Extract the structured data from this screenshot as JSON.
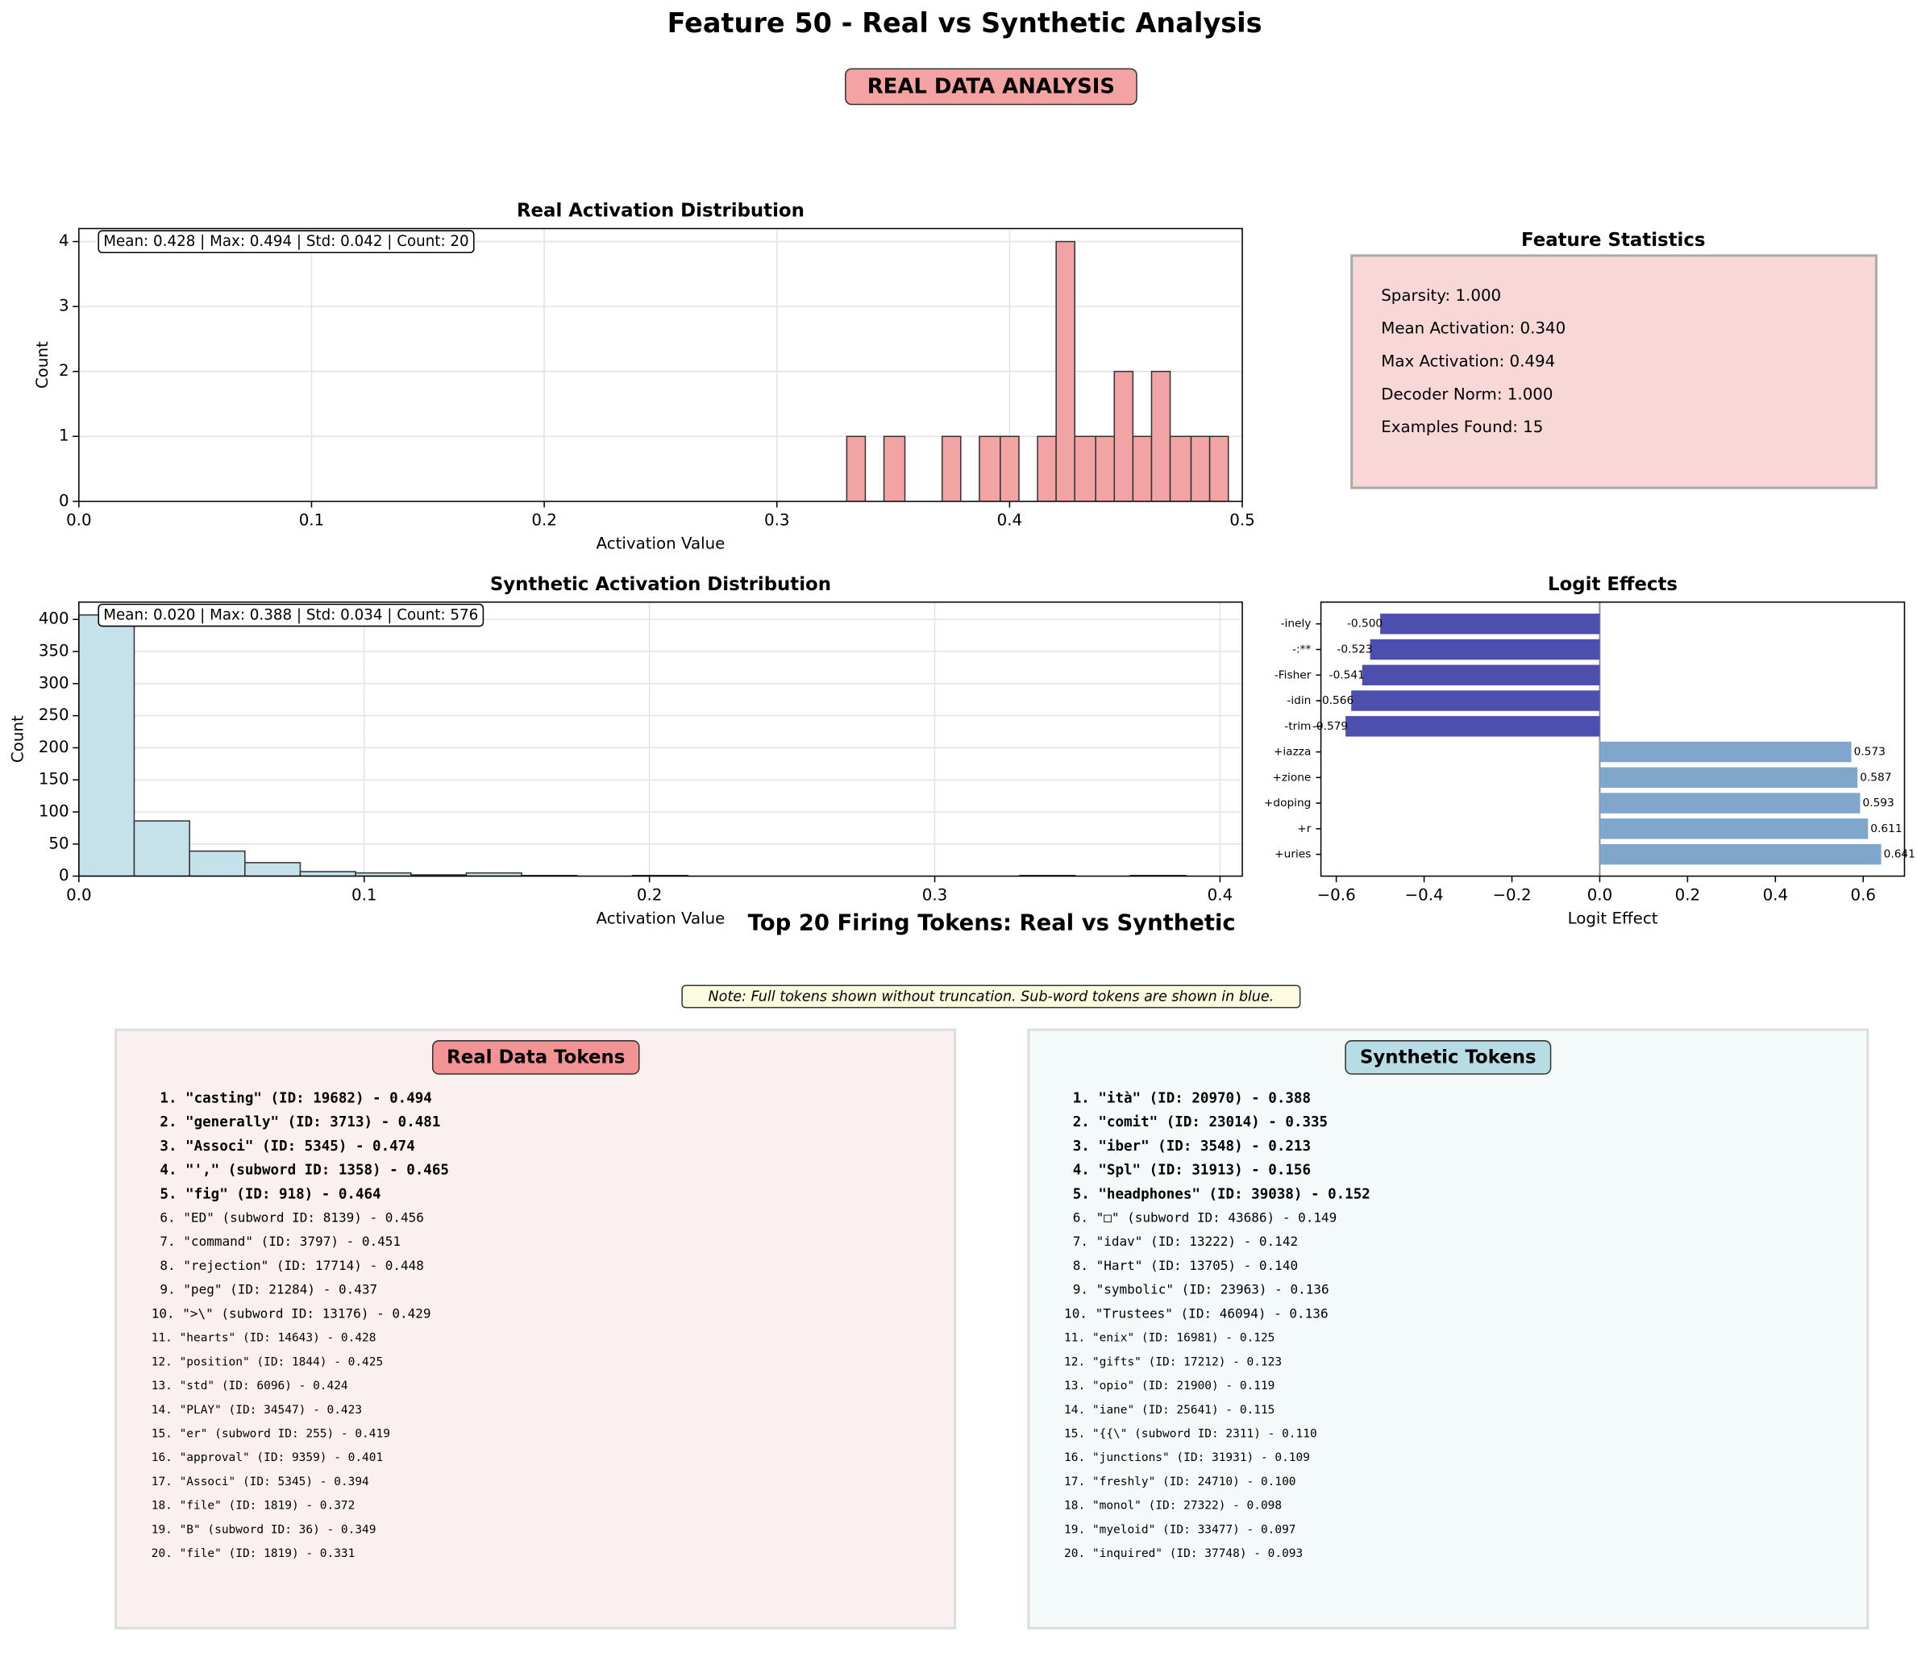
{
  "header": {
    "title": "Feature 50 - Real vs Synthetic Analysis",
    "banner": "REAL DATA ANALYSIS"
  },
  "chart_data": [
    {
      "type": "histogram",
      "title": "Real Activation Distribution",
      "x_label": "Activation Value",
      "y_label": "Count",
      "annotation": "Mean: 0.428 | Max: 0.494 | Std: 0.042 | Count: 20",
      "bins": [
        0.33,
        0.338,
        0.346,
        0.355,
        0.363,
        0.371,
        0.379,
        0.387,
        0.396,
        0.404,
        0.412,
        0.42,
        0.428,
        0.437,
        0.445,
        0.453,
        0.461,
        0.469,
        0.478,
        0.486,
        0.494
      ],
      "values": [
        1,
        0,
        1,
        0,
        0,
        1,
        0,
        1,
        1,
        0,
        1,
        4,
        1,
        1,
        2,
        1,
        2,
        1,
        1,
        1
      ],
      "color": "#f2a3a3",
      "xlim": [
        0,
        0.5
      ],
      "ylim": [
        0,
        4.2
      ],
      "xticks": [
        {
          "value": 0,
          "label": "0.0"
        },
        0.1,
        0.2,
        0.3,
        0.4,
        0.5
      ],
      "yticks": [
        0,
        1,
        2,
        3,
        4
      ],
      "grid": true
    },
    {
      "type": "histogram",
      "title": "Synthetic Activation Distribution",
      "x_label": "Activation Value",
      "y_label": "Count",
      "annotation": "Mean: 0.020 | Max: 0.388 | Std: 0.034 | Count: 576",
      "bins": [
        0,
        0.0194,
        0.0388,
        0.0582,
        0.0776,
        0.097,
        0.1164,
        0.1358,
        0.1552,
        0.1746,
        0.194,
        0.2134,
        0.2328,
        0.2522,
        0.2716,
        0.291,
        0.3104,
        0.3298,
        0.3492,
        0.3686,
        0.388
      ],
      "values": [
        407,
        86,
        39,
        21,
        7,
        5,
        2,
        5,
        1,
        0,
        1,
        0,
        0,
        0,
        0,
        0,
        0,
        1,
        0,
        1
      ],
      "color": "#c5e2ea",
      "xlim": [
        0,
        0.4078
      ],
      "ylim": [
        0,
        427
      ],
      "xticks": [
        {
          "value": 0,
          "label": "0.0"
        },
        0.1,
        0.2,
        0.3,
        0.4
      ],
      "yticks": [
        0,
        50,
        100,
        150,
        200,
        250,
        300,
        350,
        400
      ],
      "grid": true
    },
    {
      "type": "barh",
      "title": "Logit Effects",
      "x_label": "Logit Effect",
      "categories": [
        "-inely",
        "-:**",
        "-Fisher",
        "-idin",
        "-trim",
        "+iazza",
        "+zione",
        "+doping",
        "+r",
        "+uries"
      ],
      "values": [
        -0.5,
        -0.523,
        -0.541,
        -0.566,
        -0.579,
        0.573,
        0.587,
        0.593,
        0.611,
        0.641
      ],
      "value_labels": [
        "-0.500",
        "-0.523",
        "-0.541",
        "-0.566",
        "-0.579",
        "0.573",
        "0.587",
        "0.593",
        "0.611",
        "0.641"
      ],
      "negative_color": "#4d4fae",
      "positive_color": "#7fa7cc",
      "xlim": [
        -0.635,
        0.694
      ],
      "xticks": [
        {
          "value": -0.6,
          "label": "−0.6"
        },
        {
          "value": -0.4,
          "label": "−0.4"
        },
        {
          "value": -0.2,
          "label": "−0.2"
        },
        {
          "value": 0,
          "label": "0.0"
        },
        0.2,
        0.4,
        0.6
      ],
      "grid": false
    }
  ],
  "statistics": {
    "title": "Feature Statistics",
    "items": [
      "Sparsity: 1.000",
      "Mean Activation: 0.340",
      "Max Activation: 0.494",
      "Decoder Norm: 1.000",
      "Examples Found: 15"
    ]
  },
  "tokens": {
    "title": "Top 20 Firing Tokens: Real vs Synthetic",
    "note": "Note: Full tokens shown without truncation. Sub-word tokens are shown in blue.",
    "real": {
      "title": "Real Data Tokens",
      "items": [
        "1. \"casting\" (ID: 19682) - 0.494",
        "2. \"generally\" (ID: 3713) - 0.481",
        "3. \"Associ\" (ID: 5345) - 0.474",
        "4. \"',\" (subword ID: 1358) - 0.465",
        "5. \"fig\" (ID: 918) - 0.464",
        "6. \"ED\" (subword ID: 8139) - 0.456",
        "7. \"command\" (ID: 3797) - 0.451",
        "8. \"rejection\" (ID: 17714) - 0.448",
        "9. \"peg\" (ID: 21284) - 0.437",
        "10. \">\\\" (subword ID: 13176) - 0.429",
        "11. \"hearts\" (ID: 14643) - 0.428",
        "12. \"position\" (ID: 1844) - 0.425",
        "13. \"std\" (ID: 6096) - 0.424",
        "14. \"PLAY\" (ID: 34547) - 0.423",
        "15. \"er\" (subword ID: 255) - 0.419",
        "16. \"approval\" (ID: 9359) - 0.401",
        "17. \"Associ\" (ID: 5345) - 0.394",
        "18. \"file\" (ID: 1819) - 0.372",
        "19. \"B\" (subword ID: 36) - 0.349",
        "20. \"file\" (ID: 1819) - 0.331"
      ]
    },
    "synthetic": {
      "title": "Synthetic Tokens",
      "items": [
        "1. \"ità\" (ID: 20970) - 0.388",
        "2. \"comit\" (ID: 23014) - 0.335",
        "3. \"iber\" (ID: 3548) - 0.213",
        "4. \"Spl\" (ID: 31913) - 0.156",
        "5. \"headphones\" (ID: 39038) - 0.152",
        "6. \"□\" (subword ID: 43686) - 0.149",
        "7. \"idav\" (ID: 13222) - 0.142",
        "8. \"Hart\" (ID: 13705) - 0.140",
        "9. \"symbolic\" (ID: 23963) - 0.136",
        "10. \"Trustees\" (ID: 46094) - 0.136",
        "11. \"enix\" (ID: 16981) - 0.125",
        "12. \"gifts\" (ID: 17212) - 0.123",
        "13. \"opio\" (ID: 21900) - 0.119",
        "14. \"iane\" (ID: 25641) - 0.115",
        "15. \"{{\\\" (subword ID: 2311) - 0.110",
        "16. \"junctions\" (ID: 31931) - 0.109",
        "17. \"freshly\" (ID: 24710) - 0.100",
        "18. \"monol\" (ID: 27322) - 0.098",
        "19. \"myeloid\" (ID: 33477) - 0.097",
        "20. \"inquired\" (ID: 37748) - 0.093"
      ]
    }
  }
}
